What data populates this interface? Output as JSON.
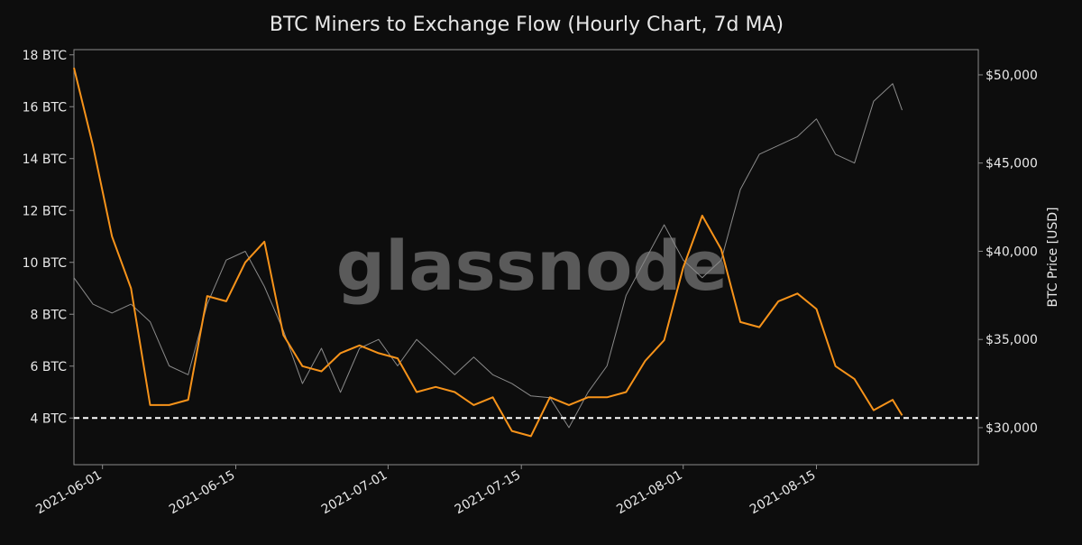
{
  "chart_data": {
    "type": "line",
    "title": "BTC Miners to Exchange Flow (Hourly Chart, 7d MA)",
    "y2_label": "BTC Price [USD]",
    "watermark": "glassnode",
    "x": [
      "2021-05-29",
      "2021-05-31",
      "2021-06-02",
      "2021-06-04",
      "2021-06-06",
      "2021-06-08",
      "2021-06-10",
      "2021-06-12",
      "2021-06-14",
      "2021-06-16",
      "2021-06-18",
      "2021-06-20",
      "2021-06-22",
      "2021-06-24",
      "2021-06-26",
      "2021-06-28",
      "2021-06-30",
      "2021-07-02",
      "2021-07-04",
      "2021-07-06",
      "2021-07-08",
      "2021-07-10",
      "2021-07-12",
      "2021-07-14",
      "2021-07-16",
      "2021-07-18",
      "2021-07-20",
      "2021-07-22",
      "2021-07-24",
      "2021-07-26",
      "2021-07-28",
      "2021-07-30",
      "2021-08-01",
      "2021-08-03",
      "2021-08-05",
      "2021-08-07",
      "2021-08-09",
      "2021-08-11",
      "2021-08-13",
      "2021-08-15",
      "2021-08-17",
      "2021-08-19",
      "2021-08-21",
      "2021-08-23",
      "2021-08-24"
    ],
    "series": [
      {
        "name": "BTC Price",
        "color": "#8a8a8a",
        "axis": "y2",
        "values": [
          38500,
          37000,
          36500,
          37000,
          36000,
          33500,
          33000,
          37000,
          39500,
          40000,
          38000,
          35500,
          32500,
          34500,
          32000,
          34500,
          35000,
          33500,
          35000,
          34000,
          33000,
          34000,
          33000,
          32500,
          31800,
          31700,
          30000,
          32000,
          33500,
          37500,
          39500,
          41500,
          39500,
          38500,
          39500,
          43500,
          45500,
          46000,
          46500,
          47500,
          45500,
          45000,
          48500,
          49500,
          48000
        ]
      },
      {
        "name": "Miners to Exchange Flow",
        "color": "#f7931a",
        "values": [
          17.5,
          14.5,
          11,
          9,
          4.5,
          4.5,
          4.7,
          8.7,
          8.5,
          10,
          10.8,
          7.2,
          6,
          5.8,
          6.5,
          6.8,
          6.5,
          6.3,
          5,
          5.2,
          5,
          4.5,
          4.8,
          3.5,
          3.3,
          4.8,
          4.5,
          4.8,
          4.8,
          5,
          6.2,
          7,
          9.8,
          11.8,
          10.5,
          7.7,
          7.5,
          8.5,
          8.8,
          8.2,
          6,
          5.5,
          4.3,
          4.7,
          4.1
        ]
      }
    ],
    "reference_line": 4,
    "xlim": [
      "2021-05-29",
      "2021-09-01"
    ],
    "xticks": [
      "2021-06-01",
      "2021-06-15",
      "2021-07-01",
      "2021-07-15",
      "2021-08-01",
      "2021-08-15"
    ],
    "ylim": [
      2.2,
      18.2
    ],
    "yticks": [
      {
        "value": 4,
        "label": "4 BTC"
      },
      {
        "value": 6,
        "label": "6 BTC"
      },
      {
        "value": 8,
        "label": "8 BTC"
      },
      {
        "value": 10,
        "label": "10 BTC"
      },
      {
        "value": 12,
        "label": "12 BTC"
      },
      {
        "value": 14,
        "label": "14 BTC"
      },
      {
        "value": 16,
        "label": "16 BTC"
      },
      {
        "value": 18,
        "label": "18 BTC"
      }
    ],
    "y2lim": [
      27900,
      51430
    ],
    "y2ticks": [
      {
        "value": 30000,
        "label": "$30,000"
      },
      {
        "value": 35000,
        "label": "$35,000"
      },
      {
        "value": 40000,
        "label": "$40,000"
      },
      {
        "value": 45000,
        "label": "$45,000"
      },
      {
        "value": 50000,
        "label": "$50,000"
      }
    ]
  }
}
